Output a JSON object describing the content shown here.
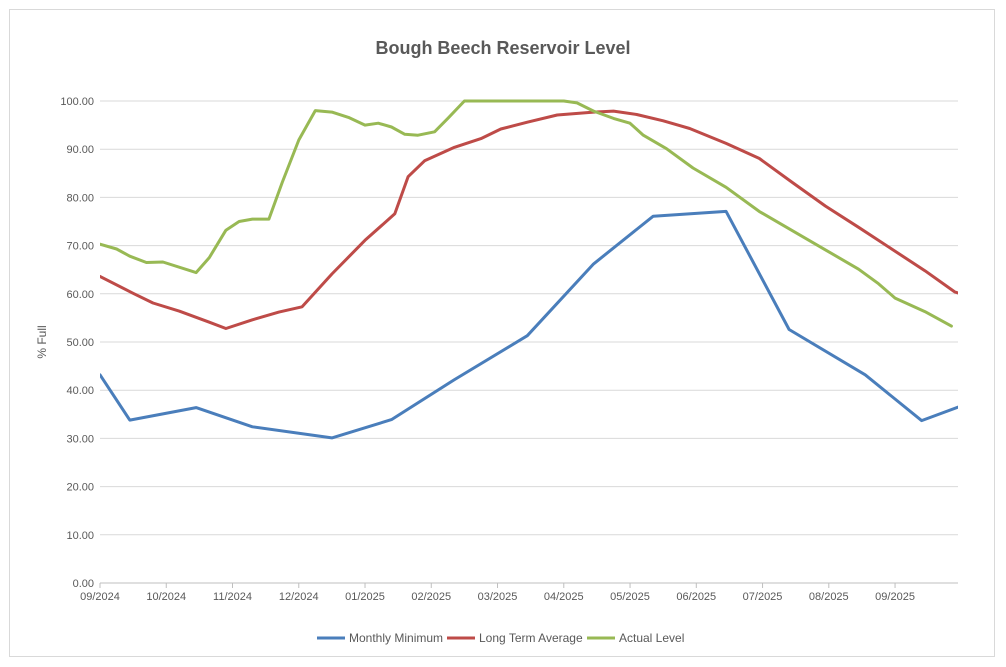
{
  "chart_data": {
    "type": "line",
    "title": "Bough Beech Reservoir Level",
    "xlabel": "",
    "ylabel": "% Full",
    "ylim": [
      0,
      100
    ],
    "y_ticks": [
      "0.00",
      "10.00",
      "20.00",
      "30.00",
      "40.00",
      "50.00",
      "60.00",
      "70.00",
      "80.00",
      "90.00",
      "100.00"
    ],
    "x_ticks": [
      "09/2024",
      "10/2024",
      "11/2024",
      "12/2024",
      "01/2025",
      "02/2025",
      "03/2025",
      "04/2025",
      "05/2025",
      "06/2025",
      "07/2025",
      "08/2025",
      "09/2025"
    ],
    "xlim": [
      0,
      12.95
    ],
    "grid": true,
    "legend_position": "bottom",
    "series": [
      {
        "name": "Monthly Minimum",
        "color": "#4a7ebb",
        "points": [
          [
            0,
            43.2
          ],
          [
            0.45,
            33.8
          ],
          [
            1.45,
            36.4
          ],
          [
            2.3,
            32.4
          ],
          [
            3.5,
            30.1
          ],
          [
            4.4,
            33.9
          ],
          [
            5.35,
            42.2
          ],
          [
            6.45,
            51.3
          ],
          [
            7.45,
            66.2
          ],
          [
            8.35,
            76.1
          ],
          [
            9.45,
            77.1
          ],
          [
            10.4,
            52.6
          ],
          [
            11.55,
            43.2
          ],
          [
            12.4,
            33.7
          ],
          [
            12.95,
            36.5
          ]
        ]
      },
      {
        "name": "Long Term Average",
        "color": "#be4b48",
        "points": [
          [
            0,
            63.6
          ],
          [
            0.5,
            60.1
          ],
          [
            0.8,
            58.1
          ],
          [
            1.2,
            56.4
          ],
          [
            1.65,
            54.1
          ],
          [
            1.9,
            52.8
          ],
          [
            2.3,
            54.6
          ],
          [
            2.7,
            56.2
          ],
          [
            3.05,
            57.3
          ],
          [
            3.5,
            64.1
          ],
          [
            4.0,
            71.1
          ],
          [
            4.45,
            76.6
          ],
          [
            4.65,
            84.3
          ],
          [
            4.9,
            87.6
          ],
          [
            5.35,
            90.4
          ],
          [
            5.75,
            92.2
          ],
          [
            6.05,
            94.2
          ],
          [
            6.45,
            95.6
          ],
          [
            6.9,
            97.1
          ],
          [
            7.45,
            97.7
          ],
          [
            7.75,
            97.9
          ],
          [
            8.1,
            97.2
          ],
          [
            8.5,
            95.9
          ],
          [
            8.9,
            94.3
          ],
          [
            9.45,
            91.2
          ],
          [
            9.95,
            88.1
          ],
          [
            10.45,
            83.1
          ],
          [
            10.95,
            78.2
          ],
          [
            11.45,
            73.8
          ],
          [
            11.95,
            69.3
          ],
          [
            12.45,
            64.8
          ],
          [
            12.9,
            60.4
          ],
          [
            13.45,
            58.1
          ]
        ]
      },
      {
        "name": "Actual Level",
        "color": "#98b954",
        "points": [
          [
            0,
            70.3
          ],
          [
            0.25,
            69.3
          ],
          [
            0.45,
            67.8
          ],
          [
            0.7,
            66.5
          ],
          [
            0.95,
            66.6
          ],
          [
            1.45,
            64.4
          ],
          [
            1.65,
            67.5
          ],
          [
            1.9,
            73.2
          ],
          [
            2.1,
            75
          ],
          [
            2.3,
            75.5
          ],
          [
            2.55,
            75.5
          ],
          [
            2.75,
            83.1
          ],
          [
            3.0,
            91.9
          ],
          [
            3.25,
            98
          ],
          [
            3.5,
            97.7
          ],
          [
            3.75,
            96.6
          ],
          [
            4.0,
            95
          ],
          [
            4.2,
            95.4
          ],
          [
            4.4,
            94.6
          ],
          [
            4.6,
            93.1
          ],
          [
            4.8,
            92.9
          ],
          [
            5.05,
            93.6
          ],
          [
            5.25,
            96.4
          ],
          [
            5.5,
            100
          ],
          [
            6.0,
            100
          ],
          [
            6.5,
            100
          ],
          [
            7.0,
            100
          ],
          [
            7.2,
            99.6
          ],
          [
            7.45,
            97.9
          ],
          [
            7.75,
            96.4
          ],
          [
            8.0,
            95.4
          ],
          [
            8.2,
            92.9
          ],
          [
            8.55,
            90.1
          ],
          [
            8.95,
            86.1
          ],
          [
            9.45,
            82.1
          ],
          [
            9.95,
            77.1
          ],
          [
            10.45,
            73.1
          ],
          [
            10.95,
            69.1
          ],
          [
            11.45,
            65.1
          ],
          [
            11.75,
            62.1
          ],
          [
            12.0,
            59.1
          ],
          [
            12.45,
            56.3
          ],
          [
            12.85,
            53.3
          ]
        ]
      }
    ]
  }
}
